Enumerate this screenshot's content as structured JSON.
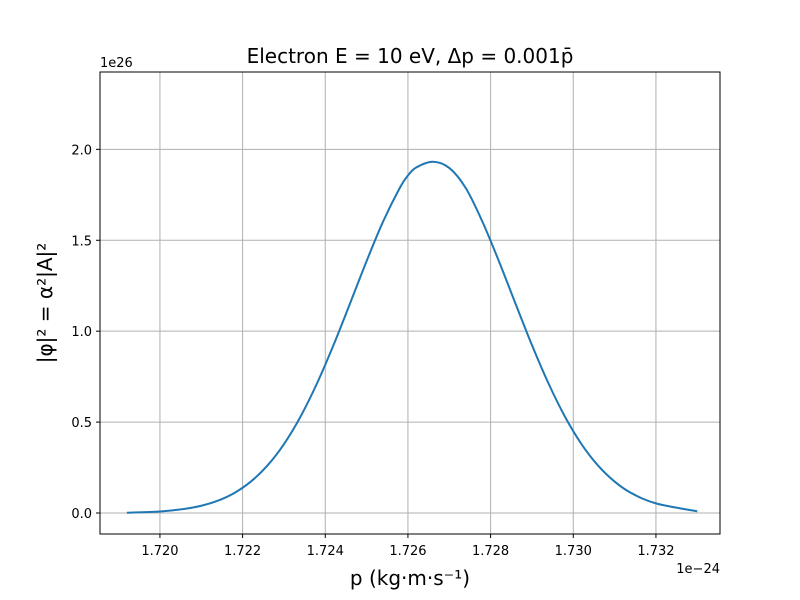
{
  "chart_data": {
    "type": "line",
    "title": "Electron E = 10 eV, Δp = 0.001p̄",
    "xlabel": "p (kg·m·s⁻¹)",
    "ylabel": "|φ|² = α²|A|²",
    "x_offset_label": "1e−24",
    "y_offset_label": "1e26",
    "xlim": [
      1.71855,
      1.73355
    ],
    "ylim": [
      -0.1155,
      2.4255
    ],
    "x_ticks": [
      1.72,
      1.722,
      1.724,
      1.726,
      1.728,
      1.73,
      1.732
    ],
    "x_tick_labels": [
      "1.720",
      "1.722",
      "1.724",
      "1.726",
      "1.728",
      "1.730",
      "1.732"
    ],
    "y_ticks": [
      0.0,
      0.5,
      1.0,
      1.5,
      2.0
    ],
    "y_tick_labels": [
      "0.0",
      "0.5",
      "1.0",
      "1.5",
      "2.0"
    ],
    "grid": true,
    "color": "#1f77b4",
    "series": [
      {
        "name": "",
        "x": [
          1.7192,
          1.72,
          1.7206,
          1.721,
          1.7214,
          1.7218,
          1.7222,
          1.7226,
          1.723,
          1.7234,
          1.7238,
          1.7242,
          1.7246,
          1.725,
          1.7254,
          1.7258,
          1.726,
          1.7262,
          1.7266,
          1.727,
          1.7274,
          1.7278,
          1.7282,
          1.7286,
          1.729,
          1.7294,
          1.7298,
          1.7302,
          1.7306,
          1.731,
          1.7314,
          1.732,
          1.733
        ],
        "y": [
          0.0015,
          0.0085,
          0.0226,
          0.0398,
          0.0675,
          0.1102,
          0.1729,
          0.2608,
          0.3788,
          0.5296,
          0.7129,
          0.924,
          1.1531,
          1.3856,
          1.6033,
          1.7866,
          1.856,
          1.9004,
          1.9321,
          1.8978,
          1.7866,
          1.6033,
          1.3856,
          1.1531,
          0.924,
          0.7129,
          0.5296,
          0.3788,
          0.2608,
          0.1729,
          0.1102,
          0.053,
          0.009
        ]
      }
    ]
  }
}
